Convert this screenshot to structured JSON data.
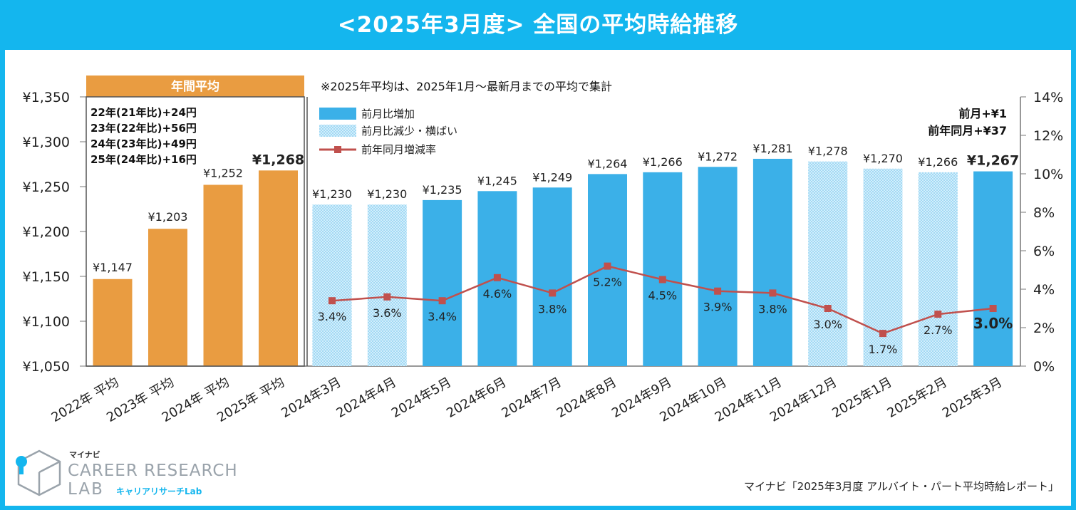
{
  "title": "<2025年3月度>  全国の平均時給推移",
  "note": "※2025年平均は、2025年1月～最新月までの平均で集計",
  "annual_box": {
    "header": "年間平均",
    "lines": [
      "22年(21年比)+24円",
      "23年(22年比)+56円",
      "24年(23年比)+49円",
      "25年(24年比)+16円"
    ]
  },
  "legend": {
    "increase": "前月比増加",
    "decrease": "前月比減少・横ばい",
    "yoy": "前年同月増減率"
  },
  "summary": {
    "mom": "前月+¥1",
    "yoy": "前年同月+¥37"
  },
  "source": "マイナビ「2025年3月度 アルバイト・パート平均時給レポート」",
  "logo": {
    "brand": "マイナビ",
    "line1": "CAREER RESEARCH",
    "line2": "LAB",
    "kana": "キャリアリサーチLab"
  },
  "colors": {
    "frame": "#14b6ee",
    "annual": "#e99c41",
    "increase": "#3bb0e8",
    "decrease": "#b4dff5",
    "line": "#c0504d"
  },
  "chart_data": {
    "type": "bar",
    "title": "全国の平均時給推移",
    "y_left_ticks": [
      "¥1,350",
      "¥1,300",
      "¥1,250",
      "¥1,200",
      "¥1,150",
      "¥1,100",
      "¥1,050"
    ],
    "y_left_range": [
      1050,
      1350
    ],
    "y_right_ticks": [
      "14%",
      "12%",
      "10%",
      "8%",
      "6%",
      "4%",
      "2%",
      "0%"
    ],
    "y_right_range": [
      0,
      14
    ],
    "annual": {
      "categories": [
        "2022年 平均",
        "2023年 平均",
        "2024年 平均",
        "2025年 平均"
      ],
      "values": [
        1147,
        1203,
        1252,
        1268
      ],
      "labels": [
        "¥1,147",
        "¥1,203",
        "¥1,252",
        "¥1,268"
      ]
    },
    "monthly": {
      "categories": [
        "2024年3月",
        "2024年4月",
        "2024年5月",
        "2024年6月",
        "2024年7月",
        "2024年8月",
        "2024年9月",
        "2024年10月",
        "2024年11月",
        "2024年12月",
        "2025年1月",
        "2025年2月",
        "2025年3月"
      ],
      "values": [
        1230,
        1230,
        1235,
        1245,
        1249,
        1264,
        1266,
        1272,
        1281,
        1278,
        1270,
        1266,
        1267
      ],
      "labels": [
        "¥1,230",
        "¥1,230",
        "¥1,235",
        "¥1,245",
        "¥1,249",
        "¥1,264",
        "¥1,266",
        "¥1,272",
        "¥1,281",
        "¥1,278",
        "¥1,270",
        "¥1,266",
        "¥1,267"
      ],
      "status": [
        "decrease",
        "decrease",
        "increase",
        "increase",
        "increase",
        "increase",
        "increase",
        "increase",
        "increase",
        "decrease",
        "decrease",
        "decrease",
        "increase"
      ],
      "yoy_pct": [
        3.4,
        3.6,
        3.4,
        4.6,
        3.8,
        5.2,
        4.5,
        3.9,
        3.8,
        3.0,
        1.7,
        2.7,
        3.0
      ],
      "yoy_labels": [
        "3.4%",
        "3.6%",
        "3.4%",
        "4.6%",
        "3.8%",
        "5.2%",
        "4.5%",
        "3.9%",
        "3.8%",
        "3.0%",
        "1.7%",
        "2.7%",
        "3.0%"
      ]
    }
  }
}
